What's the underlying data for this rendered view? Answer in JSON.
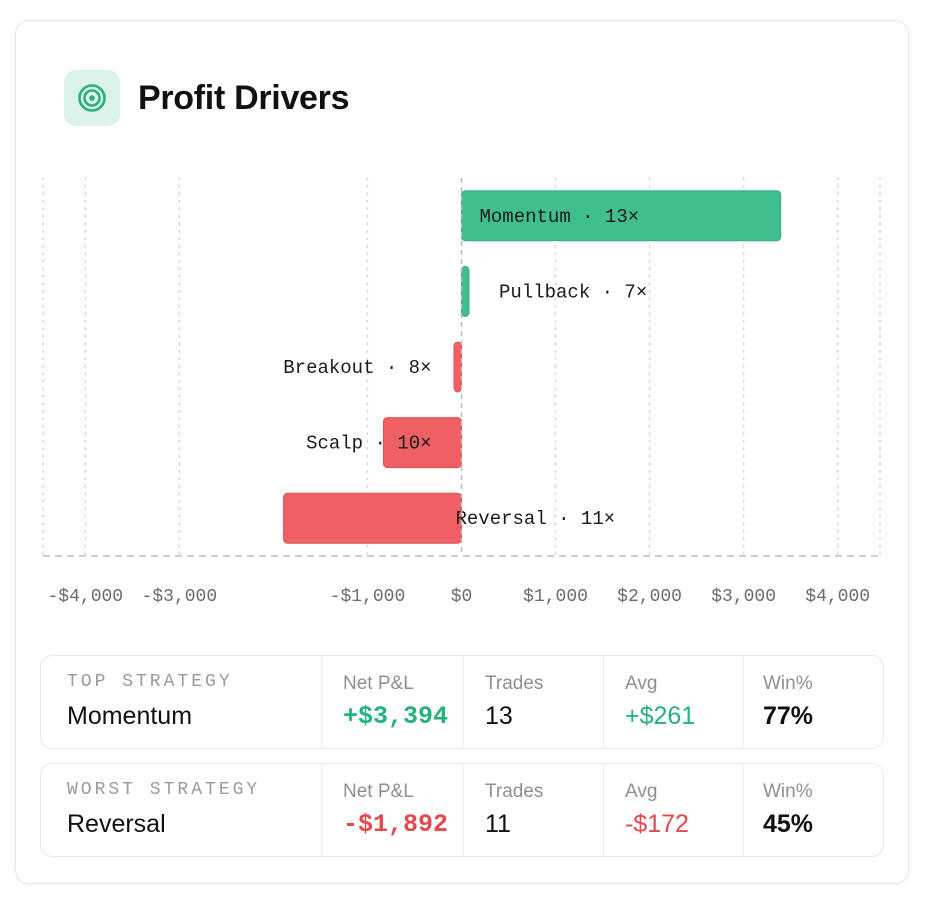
{
  "header": {
    "title": "Profit Drivers",
    "icon": "target-icon"
  },
  "colors": {
    "positive": "#3fbf8c",
    "negative": "#ef5f63",
    "positive_text": "#22b27a",
    "negative_text": "#e5484d",
    "icon_bg": "#dcf3ea"
  },
  "chart_data": {
    "type": "bar",
    "orientation": "horizontal",
    "categories": [
      "Momentum",
      "Pullback",
      "Breakout",
      "Scalp",
      "Reversal"
    ],
    "values": [
      3394,
      80,
      -80,
      -830,
      -1892
    ],
    "trade_counts": [
      13,
      7,
      8,
      10,
      11
    ],
    "bar_labels": [
      "Momentum · 13×",
      "Pullback · 7×",
      "Breakout · 8×",
      "Scalp · 10×",
      "Reversal · 11×"
    ],
    "xlim": [
      -4450,
      4450
    ],
    "x_ticks": [
      -4000,
      -3000,
      -1000,
      0,
      1000,
      2000,
      3000,
      4000
    ],
    "x_tick_labels": [
      "-$4,000",
      "-$3,000",
      "-$1,000",
      "$0",
      "$1,000",
      "$2,000",
      "$3,000",
      "$4,000"
    ],
    "grid": true,
    "title": "",
    "xlabel": "",
    "ylabel": ""
  },
  "summary": [
    {
      "label": "TOP STRATEGY",
      "name": "Momentum",
      "net_label": "Net P&L",
      "net_value": "+$3,394",
      "net_sign": "pos",
      "trades_label": "Trades",
      "trades_value": "13",
      "avg_label": "Avg",
      "avg_value": "+$261",
      "avg_sign": "pos",
      "win_label": "Win%",
      "win_value": "77%"
    },
    {
      "label": "WORST STRATEGY",
      "name": "Reversal",
      "net_label": "Net P&L",
      "net_value": "-$1,892",
      "net_sign": "neg",
      "trades_label": "Trades",
      "trades_value": "11",
      "avg_label": "Avg",
      "avg_value": "-$172",
      "avg_sign": "neg",
      "win_label": "Win%",
      "win_value": "45%"
    }
  ]
}
